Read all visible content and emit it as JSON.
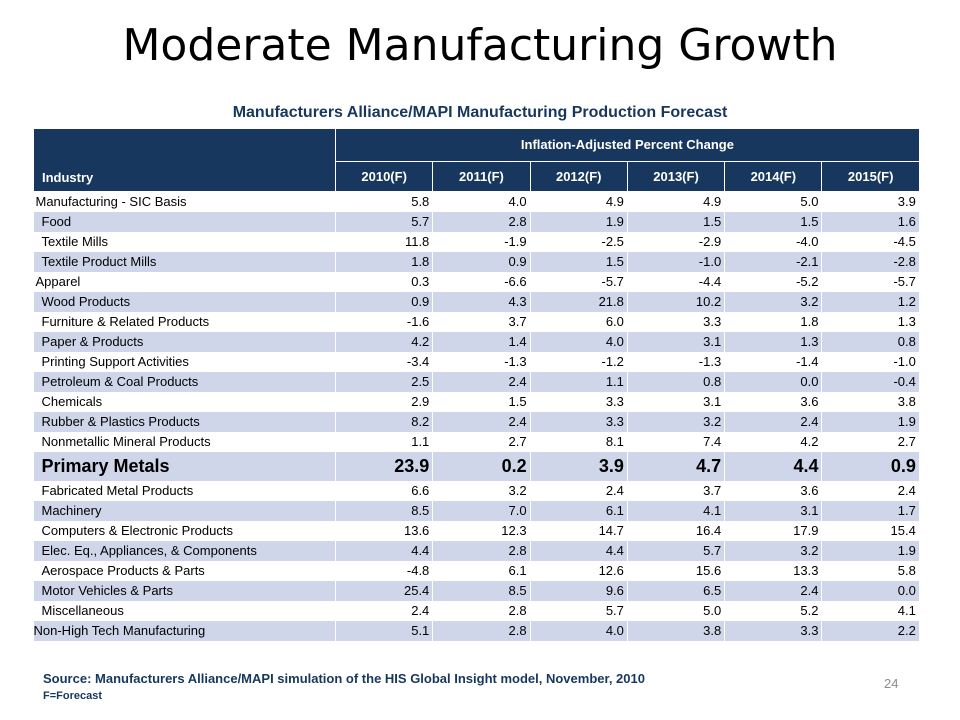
{
  "slide": {
    "title": "Moderate Manufacturing Growth",
    "subtitle": "Manufacturers Alliance/MAPI Manufacturing Production Forecast",
    "source": "Source: Manufacturers Alliance/MAPI simulation of the HIS Global Insight model, November, 2010",
    "note": "F=Forecast",
    "page_number": "24"
  },
  "table": {
    "industry_header": "Industry",
    "group_header": "Inflation-Adjusted Percent Change",
    "years": [
      "2010(F)",
      "2011(F)",
      "2012(F)",
      "2013(F)",
      "2014(F)",
      "2015(F)"
    ],
    "rows": [
      {
        "industry": "Manufacturing - SIC Basis",
        "values": [
          "5.8",
          "4.0",
          "4.9",
          "4.9",
          "5.0",
          "3.9"
        ]
      },
      {
        "industry": "Food",
        "values": [
          "5.7",
          "2.8",
          "1.9",
          "1.5",
          "1.5",
          "1.6"
        ]
      },
      {
        "industry": "Textile Mills",
        "values": [
          "11.8",
          "-1.9",
          "-2.5",
          "-2.9",
          "-4.0",
          "-4.5"
        ]
      },
      {
        "industry": "Textile Product Mills",
        "values": [
          "1.8",
          "0.9",
          "1.5",
          "-1.0",
          "-2.1",
          "-2.8"
        ]
      },
      {
        "industry": "Apparel",
        "values": [
          "0.3",
          "-6.6",
          "-5.7",
          "-4.4",
          "-5.2",
          "-5.7"
        ]
      },
      {
        "industry": "Wood Products",
        "values": [
          "0.9",
          "4.3",
          "21.8",
          "10.2",
          "3.2",
          "1.2"
        ]
      },
      {
        "industry": "Furniture & Related Products",
        "values": [
          "-1.6",
          "3.7",
          "6.0",
          "3.3",
          "1.8",
          "1.3"
        ]
      },
      {
        "industry": "Paper & Products",
        "values": [
          "4.2",
          "1.4",
          "4.0",
          "3.1",
          "1.3",
          "0.8"
        ]
      },
      {
        "industry": "Printing Support Activities",
        "values": [
          "-3.4",
          "-1.3",
          "-1.2",
          "-1.3",
          "-1.4",
          "-1.0"
        ]
      },
      {
        "industry": "Petroleum & Coal Products",
        "values": [
          "2.5",
          "2.4",
          "1.1",
          "0.8",
          "0.0",
          "-0.4"
        ]
      },
      {
        "industry": "Chemicals",
        "values": [
          "2.9",
          "1.5",
          "3.3",
          "3.1",
          "3.6",
          "3.8"
        ]
      },
      {
        "industry": "Rubber & Plastics Products",
        "values": [
          "8.2",
          "2.4",
          "3.3",
          "3.2",
          "2.4",
          "1.9"
        ]
      },
      {
        "industry": "Nonmetallic Mineral Products",
        "values": [
          "1.1",
          "2.7",
          "8.1",
          "7.4",
          "4.2",
          "2.7"
        ]
      },
      {
        "industry": "Primary Metals",
        "values": [
          "23.9",
          "0.2",
          "3.9",
          "4.7",
          "4.4",
          "0.9"
        ]
      },
      {
        "industry": "Fabricated Metal Products",
        "values": [
          "6.6",
          "3.2",
          "2.4",
          "3.7",
          "3.6",
          "2.4"
        ]
      },
      {
        "industry": "Machinery",
        "values": [
          "8.5",
          "7.0",
          "6.1",
          "4.1",
          "3.1",
          "1.7"
        ]
      },
      {
        "industry": "Computers & Electronic Products",
        "values": [
          "13.6",
          "12.3",
          "14.7",
          "16.4",
          "17.9",
          "15.4"
        ]
      },
      {
        "industry": "Elec. Eq., Appliances, & Components",
        "values": [
          "4.4",
          "2.8",
          "4.4",
          "5.7",
          "3.2",
          "1.9"
        ]
      },
      {
        "industry": "Aerospace Products & Parts",
        "values": [
          "-4.8",
          "6.1",
          "12.6",
          "15.6",
          "13.3",
          "5.8"
        ]
      },
      {
        "industry": "Motor Vehicles & Parts",
        "values": [
          "25.4",
          "8.5",
          "9.6",
          "6.5",
          "2.4",
          "0.0"
        ]
      },
      {
        "industry": "Miscellaneous",
        "values": [
          "2.4",
          "2.8",
          "5.7",
          "5.0",
          "5.2",
          "4.1"
        ]
      },
      {
        "industry": "Non-High Tech Manufacturing",
        "values": [
          "5.1",
          "2.8",
          "4.0",
          "3.8",
          "3.3",
          "2.2"
        ]
      }
    ]
  }
}
